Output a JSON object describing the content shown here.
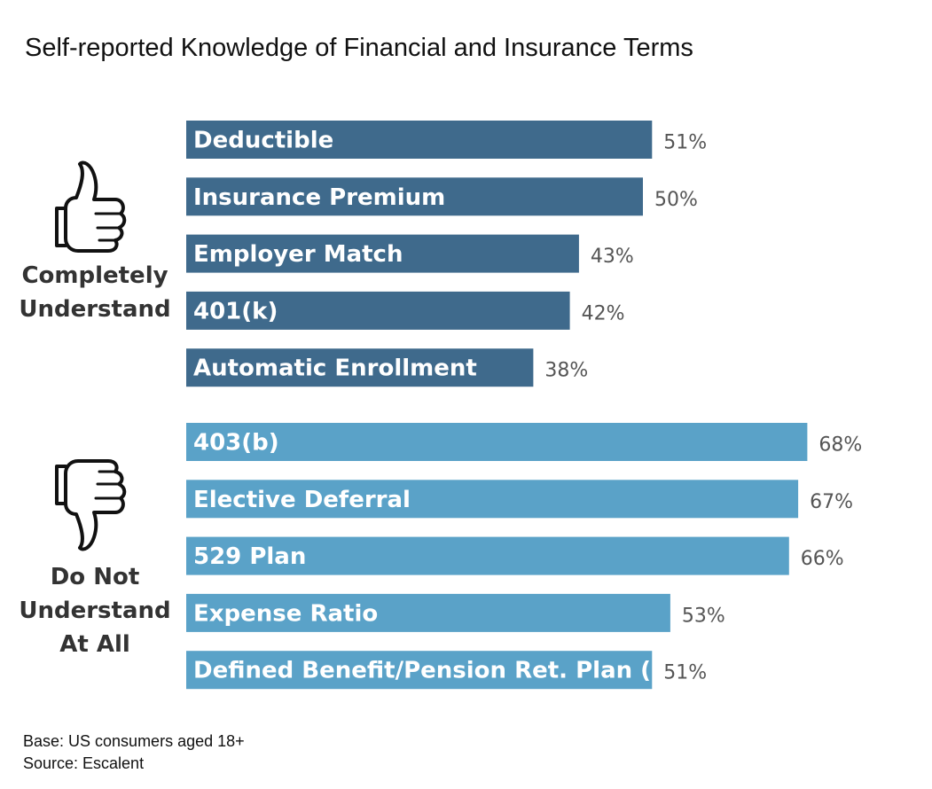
{
  "title": "Self-reported Knowledge of Financial and Insurance Terms",
  "groups": [
    {
      "label": "Completely Understand",
      "lines": [
        "Completely",
        "Understand"
      ],
      "icon": "thumbs-up-icon"
    },
    {
      "label": "Do Not Understand At All",
      "lines": [
        "Do Not",
        "Understand",
        "At All"
      ],
      "icon": "thumbs-down-icon"
    }
  ],
  "footer": {
    "base": "Base: US consumers aged 18+",
    "source": "Source: Escalent"
  },
  "colors": {
    "understand": "#3F6A8C",
    "not_understand": "#5AA2C8",
    "value_text": "#555555"
  },
  "chart_data": {
    "type": "bar",
    "orientation": "horizontal",
    "title": "Self-reported Knowledge of Financial and Insurance Terms",
    "xlabel": "",
    "ylabel": "",
    "xlim": [
      0,
      100
    ],
    "grid": false,
    "unit": "%",
    "series": [
      {
        "name": "Completely Understand",
        "categories": [
          "Deductible",
          "Insurance Premium",
          "Employer Match",
          "401(k)",
          "Automatic Enrollment"
        ],
        "values": [
          51,
          50,
          43,
          42,
          38
        ],
        "labels": [
          "51%",
          "50%",
          "43%",
          "42%",
          "38%"
        ]
      },
      {
        "name": "Do Not Understand At All",
        "categories": [
          "403(b)",
          "Elective Deferral",
          "529 Plan",
          "Expense Ratio",
          "Defined Benefit/Pension Ret. Plan (DB)"
        ],
        "values": [
          68,
          67,
          66,
          53,
          51
        ],
        "labels": [
          "68%",
          "67%",
          "66%",
          "53%",
          "51%"
        ]
      }
    ]
  }
}
